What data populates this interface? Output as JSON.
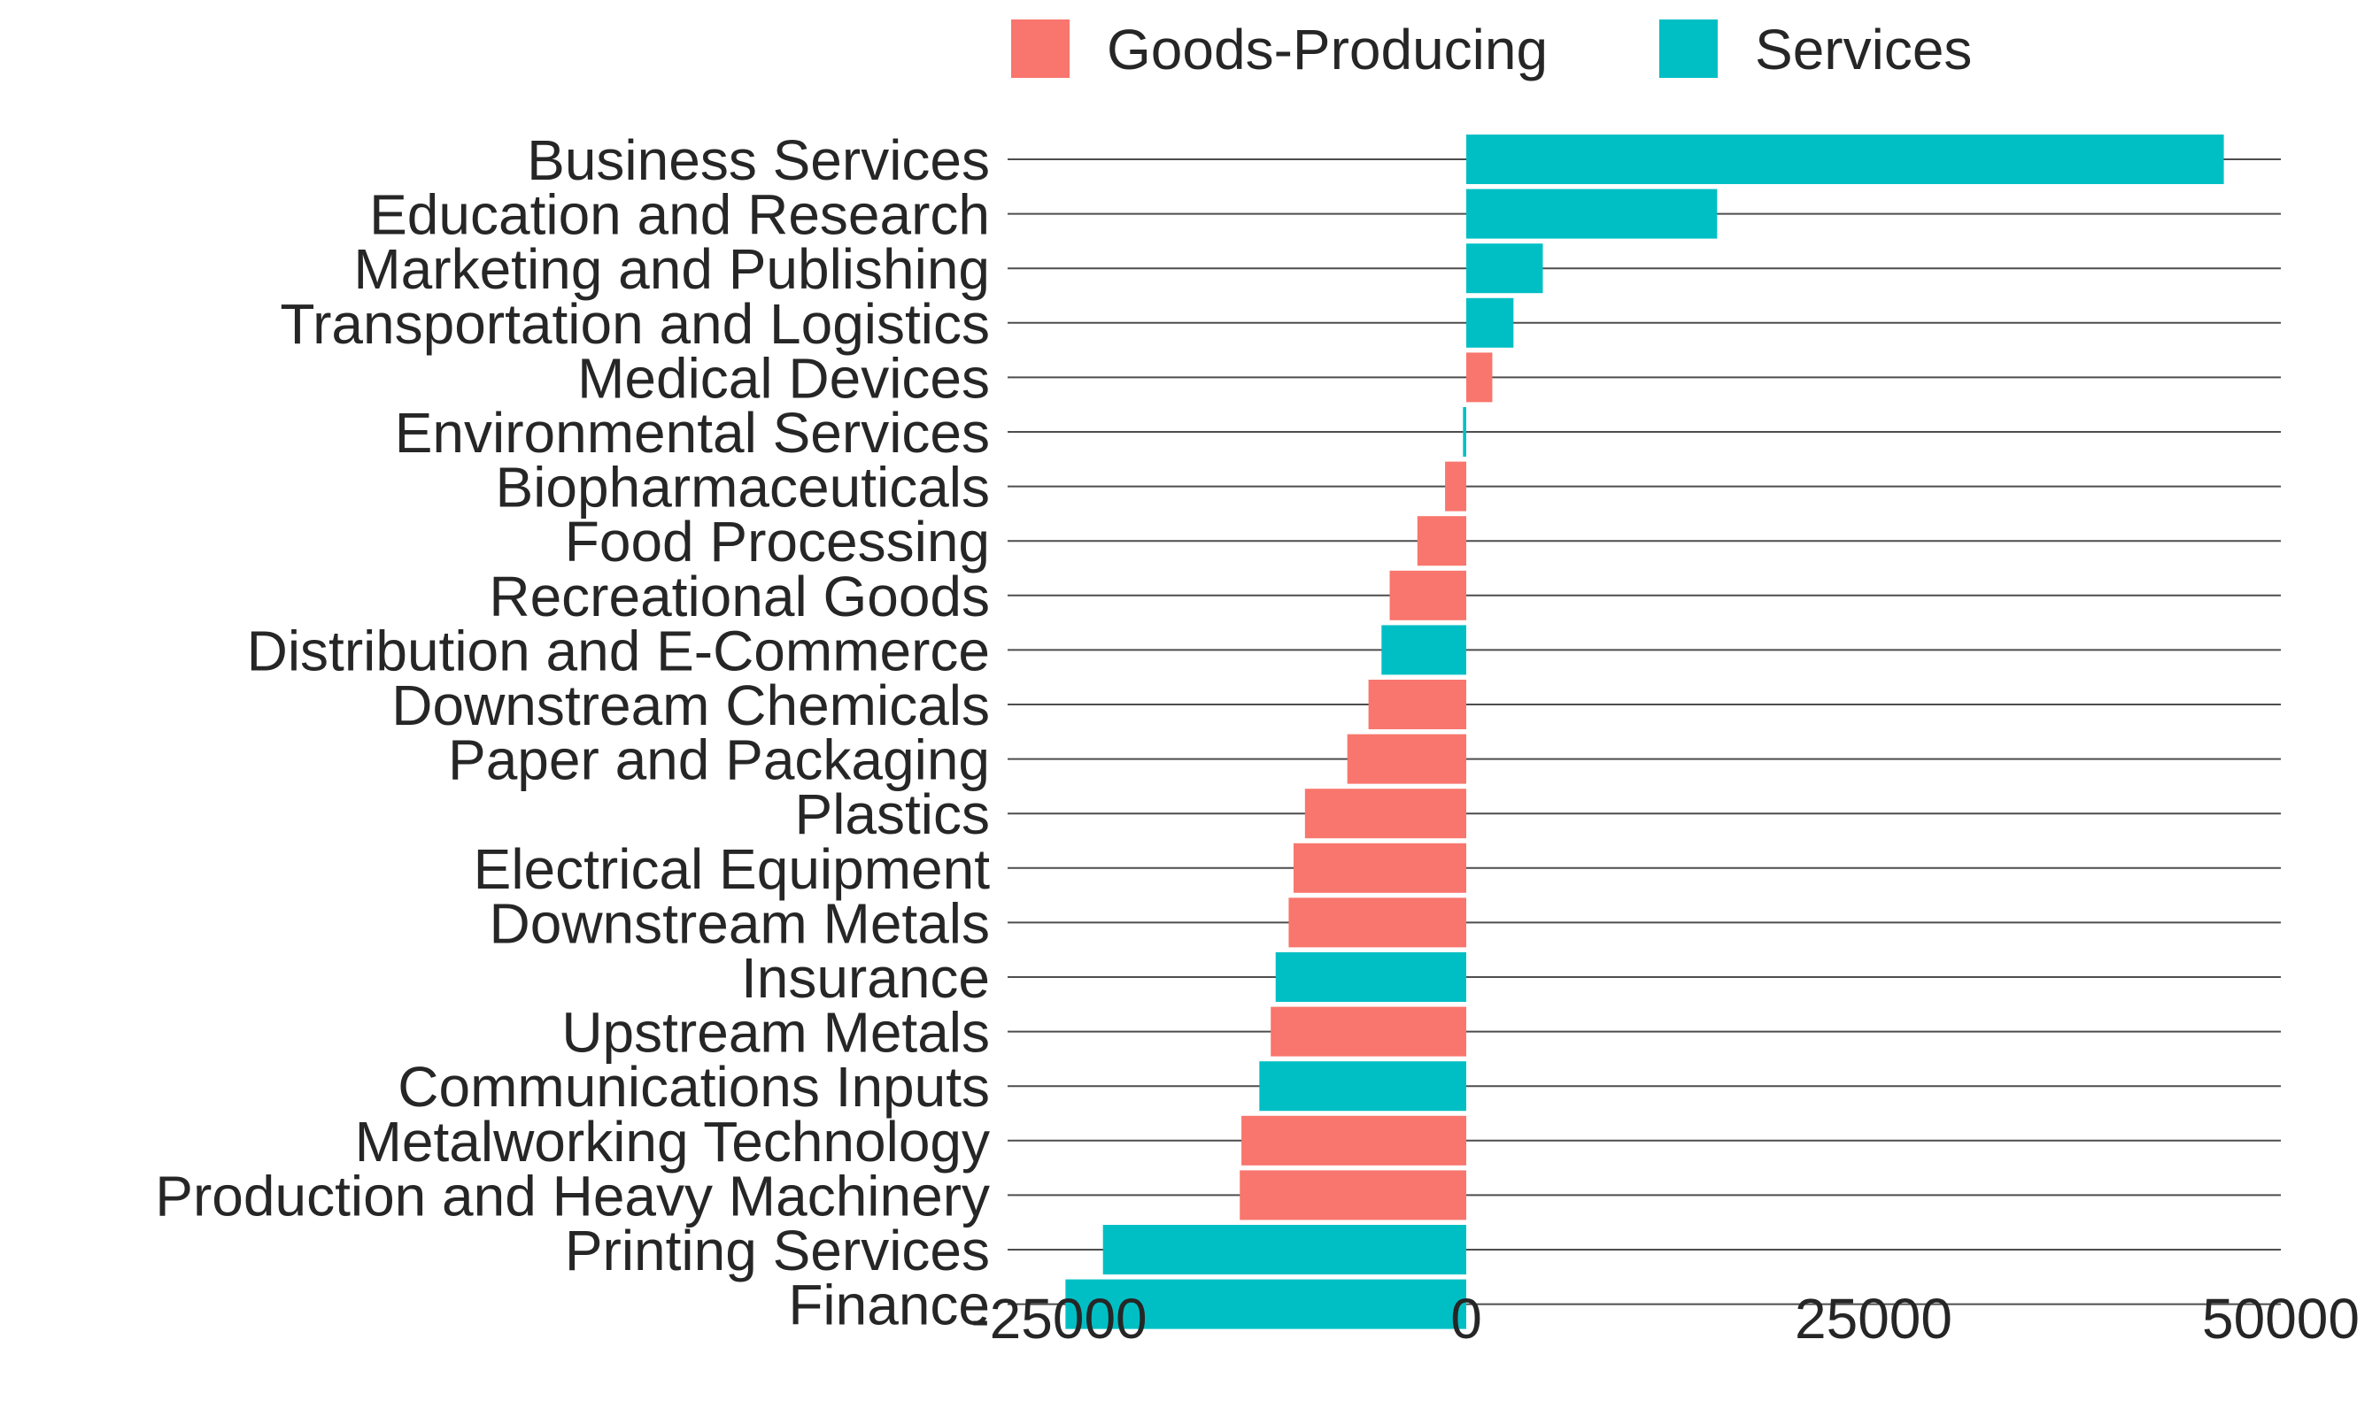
{
  "chart_data": {
    "type": "bar",
    "orientation": "horizontal",
    "title": "",
    "xlabel": "",
    "ylabel": "",
    "xlim": [
      -30000,
      50000
    ],
    "xticks": [
      -25000,
      0,
      25000,
      50000
    ],
    "xtick_labels": [
      "-25000",
      "0",
      "25000",
      "50000"
    ],
    "grid": "horizontal lines at each category",
    "legend": {
      "placement": "top",
      "entries": [
        "Goods-Producing",
        "Services"
      ]
    },
    "colors": {
      "Goods-Producing": "#F8766D",
      "Services": "#00BFC4",
      "gridline": "#4d4d4d",
      "text": "#262626"
    },
    "bars": [
      {
        "category": "Business Services",
        "value": 46500,
        "group": "Services"
      },
      {
        "category": "Education and Research",
        "value": 15400,
        "group": "Services"
      },
      {
        "category": "Marketing and Publishing",
        "value": 4700,
        "group": "Services"
      },
      {
        "category": "Transportation and Logistics",
        "value": 2900,
        "group": "Services"
      },
      {
        "category": "Medical Devices",
        "value": 1600,
        "group": "Goods-Producing"
      },
      {
        "category": "Environmental Services",
        "value": -200,
        "group": "Services"
      },
      {
        "category": "Biopharmaceuticals",
        "value": -1300,
        "group": "Goods-Producing"
      },
      {
        "category": "Food Processing",
        "value": -3000,
        "group": "Goods-Producing"
      },
      {
        "category": "Recreational Goods",
        "value": -4700,
        "group": "Goods-Producing"
      },
      {
        "category": "Distribution and E-Commerce",
        "value": -5200,
        "group": "Services"
      },
      {
        "category": "Downstream Chemicals",
        "value": -6000,
        "group": "Goods-Producing"
      },
      {
        "category": "Paper and Packaging",
        "value": -7300,
        "group": "Goods-Producing"
      },
      {
        "category": "Plastics",
        "value": -9900,
        "group": "Goods-Producing"
      },
      {
        "category": "Electrical Equipment",
        "value": -10600,
        "group": "Goods-Producing"
      },
      {
        "category": "Downstream Metals",
        "value": -10900,
        "group": "Goods-Producing"
      },
      {
        "category": "Insurance",
        "value": -11700,
        "group": "Services"
      },
      {
        "category": "Upstream Metals",
        "value": -12000,
        "group": "Goods-Producing"
      },
      {
        "category": "Communications Inputs",
        "value": -12700,
        "group": "Services"
      },
      {
        "category": "Metalworking Technology",
        "value": -13800,
        "group": "Goods-Producing"
      },
      {
        "category": "Production and Heavy Machinery",
        "value": -13900,
        "group": "Goods-Producing"
      },
      {
        "category": "Printing Services",
        "value": -22300,
        "group": "Services"
      },
      {
        "category": "Finance",
        "value": -24600,
        "group": "Services"
      }
    ]
  }
}
